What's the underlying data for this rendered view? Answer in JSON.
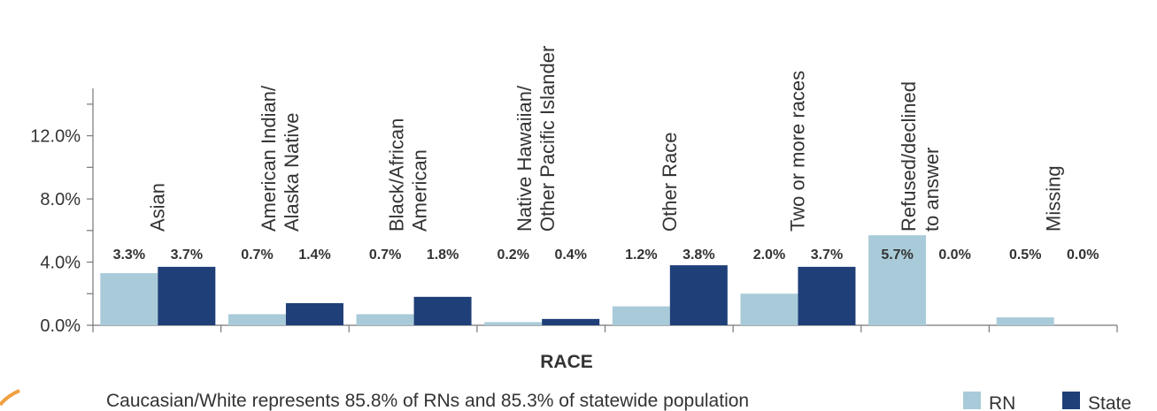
{
  "chart_data": {
    "type": "bar",
    "x_label": "RACE",
    "note": "Caucasian/White represents 85.8% of RNs and 85.3% of statewide population",
    "categories": [
      "Asian",
      "American Indian/\nAlaska Native",
      "Black/African\nAmerican",
      "Native Hawaiian/\nOther Pacific Islander",
      "Other Race",
      "Two or more races",
      "Refused/declined\nto answer",
      "Missing"
    ],
    "series": [
      {
        "name": "RN",
        "color": "#a9cbd9",
        "values": [
          3.3,
          0.7,
          0.7,
          0.2,
          1.2,
          2.0,
          5.7,
          0.5
        ],
        "value_labels": [
          "3.3%",
          "0.7%",
          "0.7%",
          "0.2%",
          "1.2%",
          "2.0%",
          "5.7%",
          "0.5%"
        ]
      },
      {
        "name": "State",
        "color": "#1f3f78",
        "values": [
          3.7,
          1.4,
          1.8,
          0.4,
          3.8,
          3.7,
          0.0,
          0.0
        ],
        "value_labels": [
          "3.7%",
          "1.4%",
          "1.8%",
          "0.4%",
          "3.8%",
          "3.7%",
          "0.0%",
          "0.0%"
        ]
      }
    ],
    "ylim": [
      0,
      15
    ],
    "yticks": [
      {
        "value": 0,
        "label": "0.0%"
      },
      {
        "value": 4,
        "label": "4.0%"
      },
      {
        "value": 8,
        "label": "8.0%"
      },
      {
        "value": 12,
        "label": "12.0%"
      }
    ],
    "minor_yticks": [
      2,
      6,
      10,
      14
    ],
    "legend": "bottom-right"
  }
}
